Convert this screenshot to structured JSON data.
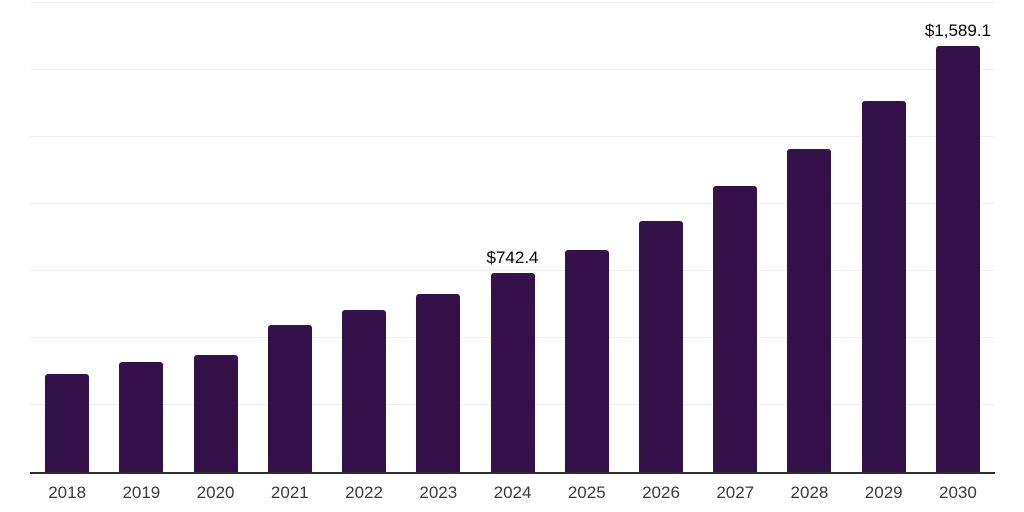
{
  "chart_data": {
    "type": "bar",
    "title": "",
    "xlabel": "",
    "ylabel": "",
    "categories": [
      "2018",
      "2019",
      "2020",
      "2021",
      "2022",
      "2023",
      "2024",
      "2025",
      "2026",
      "2027",
      "2028",
      "2029",
      "2030"
    ],
    "values": [
      366,
      410,
      436,
      548,
      603,
      664,
      742.4,
      830,
      936,
      1066,
      1207,
      1383,
      1589.1
    ],
    "data_labels": [
      {
        "category": "2024",
        "text": "$742.4"
      },
      {
        "category": "2030",
        "text": "$1,589.1"
      }
    ],
    "ylim": [
      0,
      1750
    ],
    "gridline_step": 250,
    "grid": true,
    "legend": false,
    "y_axis_tick_labels_visible": false,
    "bar_color": "#341148",
    "axis_line_color": "#2e2e2e",
    "gridline_color": "#f0f0f0",
    "tick_label_color": "#3b3b3b",
    "data_label_color": "#000000"
  }
}
